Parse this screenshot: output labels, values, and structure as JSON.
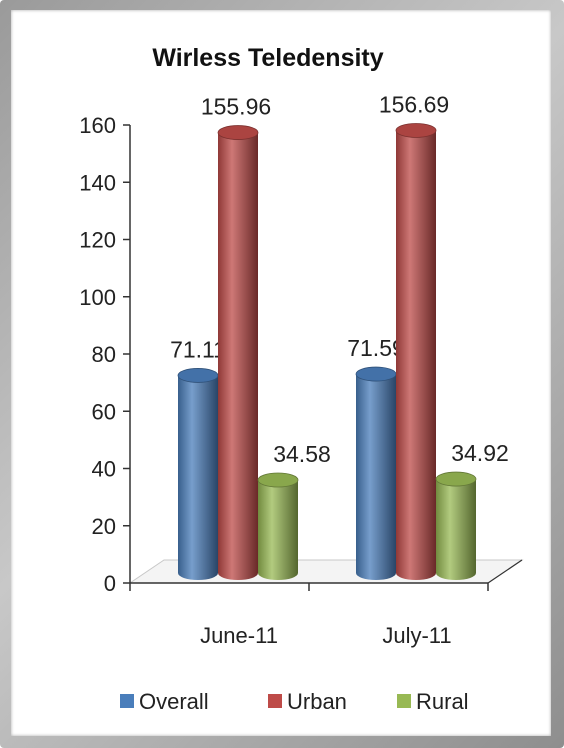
{
  "chart_data": {
    "type": "bar",
    "title": "Wirless Teledensity",
    "xlabel": "",
    "ylabel": "",
    "categories": [
      "June-11",
      "July-11"
    ],
    "series": [
      {
        "name": "Overall",
        "values": [
          71.11,
          71.59
        ],
        "color": "#4a7ebb"
      },
      {
        "name": "Urban",
        "values": [
          155.96,
          156.69
        ],
        "color": "#be4b48"
      },
      {
        "name": "Rural",
        "values": [
          34.58,
          34.92
        ],
        "color": "#98b954"
      }
    ],
    "data_labels": [
      [
        "71.11",
        "155.96",
        "34.58"
      ],
      [
        "71.59",
        "156.69",
        "34.92"
      ]
    ],
    "ylim": [
      0,
      160
    ],
    "yticks": [
      "0",
      "20",
      "40",
      "60",
      "80",
      "100",
      "120",
      "140",
      "160"
    ],
    "legend": "bottom",
    "grid": false,
    "style": "3d-cylinder"
  }
}
